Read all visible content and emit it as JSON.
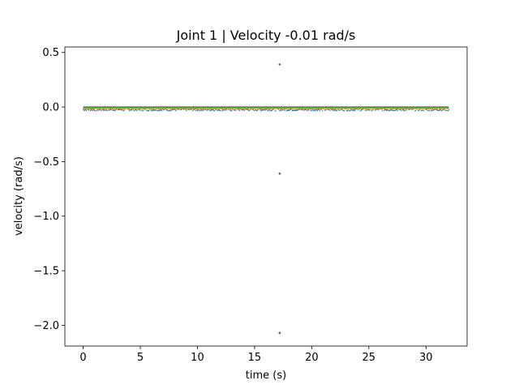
{
  "chart_data": {
    "type": "scatter",
    "title": "Joint 1 | Velocity -0.01 rad/s",
    "xlabel": "time (s)",
    "ylabel": "velocity (rad/s)",
    "xlim": [
      -1.6,
      33.6
    ],
    "ylim": [
      -2.19,
      0.55
    ],
    "grid": false,
    "x_ticks": [
      0,
      5,
      10,
      15,
      20,
      25,
      30
    ],
    "x_tick_labels": [
      "0",
      "5",
      "10",
      "15",
      "20",
      "25",
      "30"
    ],
    "y_ticks": [
      0.5,
      0.0,
      -0.5,
      -1.0,
      -1.5,
      -2.0
    ],
    "y_tick_labels": [
      "0.5",
      "0.0",
      "−0.5",
      "−1.0",
      "−1.5",
      "−2.0"
    ],
    "series": [
      {
        "color": "#1f77b4",
        "kind": "points",
        "description_x_range": [
          0,
          32
        ],
        "baseline_band": [
          -0.035,
          -0.01
        ],
        "outliers": [
          {
            "x": 17.2,
            "y": 0.39
          },
          {
            "x": 17.2,
            "y": -0.61
          },
          {
            "x": 17.2,
            "y": -2.07
          }
        ]
      },
      {
        "color": "#ff7f0e",
        "kind": "line",
        "x": [
          0,
          32
        ],
        "y": [
          -0.01,
          -0.01
        ]
      },
      {
        "color": "#2ca02c",
        "kind": "line",
        "x": [
          0,
          32
        ],
        "y": [
          0.0,
          0.0
        ]
      }
    ]
  }
}
